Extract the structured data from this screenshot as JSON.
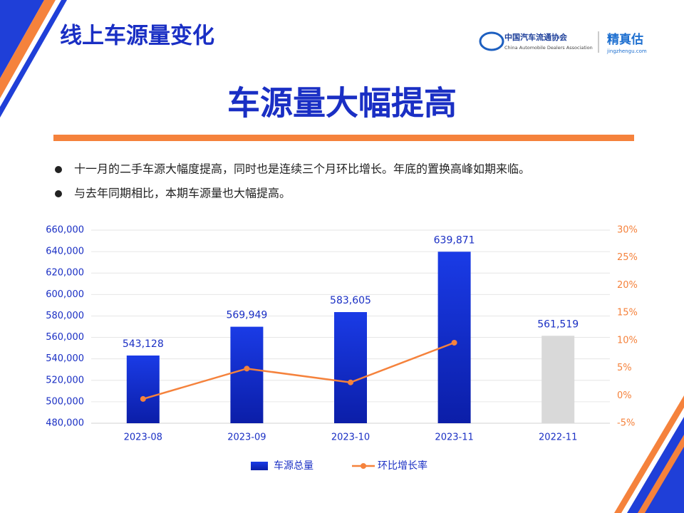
{
  "header": {
    "title": "线上车源量变化",
    "logo_cn": "中国汽车流通协会",
    "logo_en": "China Automobile Dealers Association",
    "brand": "精真估",
    "brand_url": "jingzhengu.com"
  },
  "headline": "车源量大幅提高",
  "bullets": [
    "十一月的二手车源大幅度提高，同时也是连续三个月环比增长。年底的置换高峰如期来临。",
    "与去年同期相比，本期车源量也大幅提高。"
  ],
  "chart_data": {
    "type": "bar",
    "categories": [
      "2023-08",
      "2023-09",
      "2023-10",
      "2023-11",
      "2022-11"
    ],
    "series": [
      {
        "name": "车源总量",
        "type": "bar",
        "color": "#1534d6",
        "colors": [
          "#1534d6",
          "#1534d6",
          "#1534d6",
          "#1534d6",
          "#d9d9d9"
        ],
        "values": [
          543128,
          569949,
          583605,
          639871,
          561519
        ],
        "value_labels": [
          "543,128",
          "569,949",
          "583,605",
          "639,871",
          "561,519"
        ]
      },
      {
        "name": "环比增长率",
        "type": "line",
        "axis": "y2",
        "color": "#f5823c",
        "values": [
          -0.6,
          4.9,
          2.4,
          9.6,
          null
        ]
      }
    ],
    "ylim": [
      480000,
      660000
    ],
    "yticks": [
      {
        "value": 480000,
        "label": "480,000"
      },
      {
        "value": 500000,
        "label": "500,000"
      },
      {
        "value": 520000,
        "label": "520,000"
      },
      {
        "value": 540000,
        "label": "540,000"
      },
      {
        "value": 560000,
        "label": "560,000"
      },
      {
        "value": 580000,
        "label": "580,000"
      },
      {
        "value": 600000,
        "label": "600,000"
      },
      {
        "value": 620000,
        "label": "620,000"
      },
      {
        "value": 640000,
        "label": "640,000"
      },
      {
        "value": 660000,
        "label": "660,000"
      }
    ],
    "y2lim": [
      -5,
      30
    ],
    "y2ticks": [
      {
        "value": -5,
        "label": "-5%"
      },
      {
        "value": 0,
        "label": "0%"
      },
      {
        "value": 5,
        "label": "5%"
      },
      {
        "value": 10,
        "label": "10%"
      },
      {
        "value": 15,
        "label": "15%"
      },
      {
        "value": 20,
        "label": "20%"
      },
      {
        "value": 25,
        "label": "25%"
      },
      {
        "value": 30,
        "label": "30%"
      }
    ],
    "grid": true,
    "legend": "bottom"
  }
}
